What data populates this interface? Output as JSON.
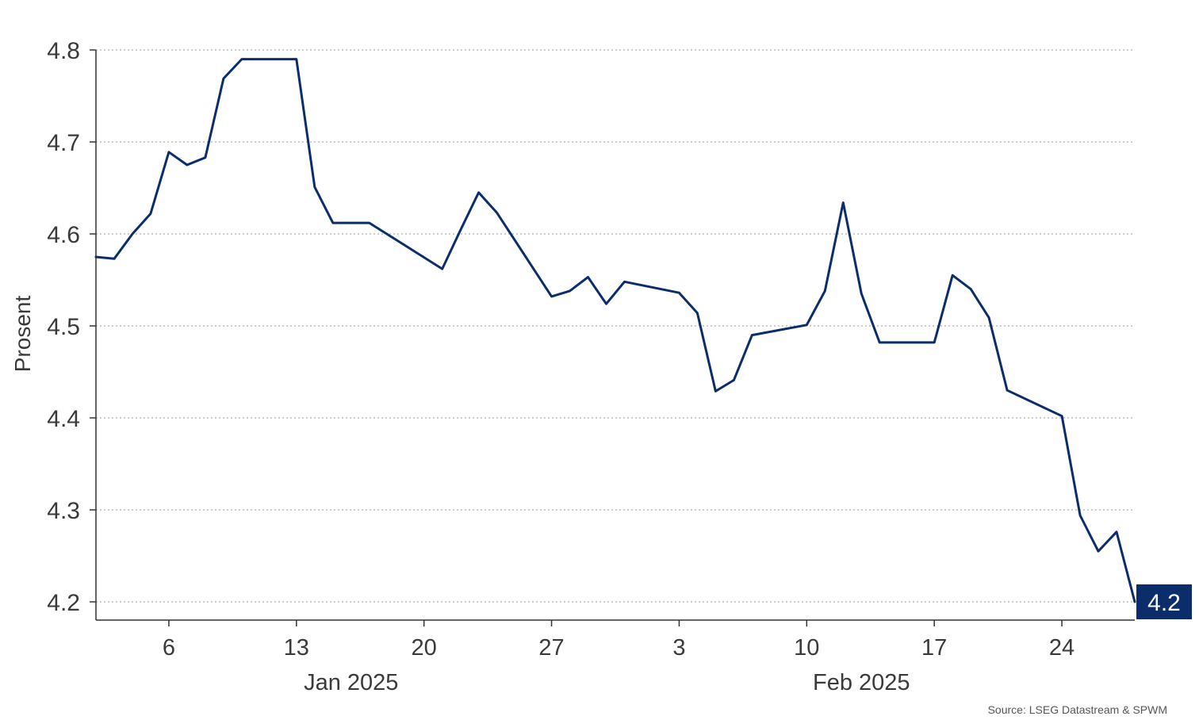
{
  "chart_data": {
    "type": "line",
    "ylabel": "Prosent",
    "ylim": [
      4.2,
      4.8
    ],
    "yticks": [
      4.2,
      4.3,
      4.4,
      4.5,
      4.6,
      4.7,
      4.8
    ],
    "ytick_labels": [
      "4.2",
      "4.3",
      "4.4",
      "4.5",
      "4.6",
      "4.7",
      "4.8"
    ],
    "xlim": [
      "2025-01-02",
      "2025-02-28"
    ],
    "xticks": [
      {
        "date": "2025-01-06",
        "label": "6"
      },
      {
        "date": "2025-01-13",
        "label": "13"
      },
      {
        "date": "2025-01-20",
        "label": "20"
      },
      {
        "date": "2025-01-27",
        "label": "27"
      },
      {
        "date": "2025-02-03",
        "label": "3"
      },
      {
        "date": "2025-02-10",
        "label": "10"
      },
      {
        "date": "2025-02-17",
        "label": "17"
      },
      {
        "date": "2025-02-24",
        "label": "24"
      }
    ],
    "month_labels": [
      {
        "date": "2025-01-16",
        "label": "Jan 2025"
      },
      {
        "date": "2025-02-13",
        "label": "Feb 2025"
      }
    ],
    "grid": "horizontal-dotted",
    "series": [
      {
        "color": "#0b2d6b",
        "points": [
          [
            "2025-01-02",
            4.575
          ],
          [
            "2025-01-03",
            4.573
          ],
          [
            "2025-01-04",
            4.6
          ],
          [
            "2025-01-05",
            4.622
          ],
          [
            "2025-01-06",
            4.689
          ],
          [
            "2025-01-07",
            4.675
          ],
          [
            "2025-01-08",
            4.683
          ],
          [
            "2025-01-09",
            4.769
          ],
          [
            "2025-01-10",
            4.79
          ],
          [
            "2025-01-13",
            4.79
          ],
          [
            "2025-01-14",
            4.651
          ],
          [
            "2025-01-15",
            4.612
          ],
          [
            "2025-01-16",
            4.612
          ],
          [
            "2025-01-17",
            4.612
          ],
          [
            "2025-01-21",
            4.562
          ],
          [
            "2025-01-22",
            4.604
          ],
          [
            "2025-01-23",
            4.645
          ],
          [
            "2025-01-24",
            4.623
          ],
          [
            "2025-01-27",
            4.532
          ],
          [
            "2025-01-28",
            4.538
          ],
          [
            "2025-01-29",
            4.553
          ],
          [
            "2025-01-30",
            4.524
          ],
          [
            "2025-01-31",
            4.548
          ],
          [
            "2025-02-03",
            4.536
          ],
          [
            "2025-02-04",
            4.514
          ],
          [
            "2025-02-05",
            4.429
          ],
          [
            "2025-02-06",
            4.441
          ],
          [
            "2025-02-07",
            4.49
          ],
          [
            "2025-02-10",
            4.501
          ],
          [
            "2025-02-11",
            4.538
          ],
          [
            "2025-02-12",
            4.634
          ],
          [
            "2025-02-13",
            4.535
          ],
          [
            "2025-02-14",
            4.482
          ],
          [
            "2025-02-17",
            4.482
          ],
          [
            "2025-02-18",
            4.555
          ],
          [
            "2025-02-19",
            4.54
          ],
          [
            "2025-02-20",
            4.509
          ],
          [
            "2025-02-21",
            4.43
          ],
          [
            "2025-02-24",
            4.402
          ],
          [
            "2025-02-25",
            4.294
          ],
          [
            "2025-02-26",
            4.255
          ],
          [
            "2025-02-27",
            4.276
          ],
          [
            "2025-02-28",
            4.2
          ]
        ],
        "last_value_label": "4.2"
      }
    ],
    "source": "Source: LSEG Datastream & SPWM"
  }
}
